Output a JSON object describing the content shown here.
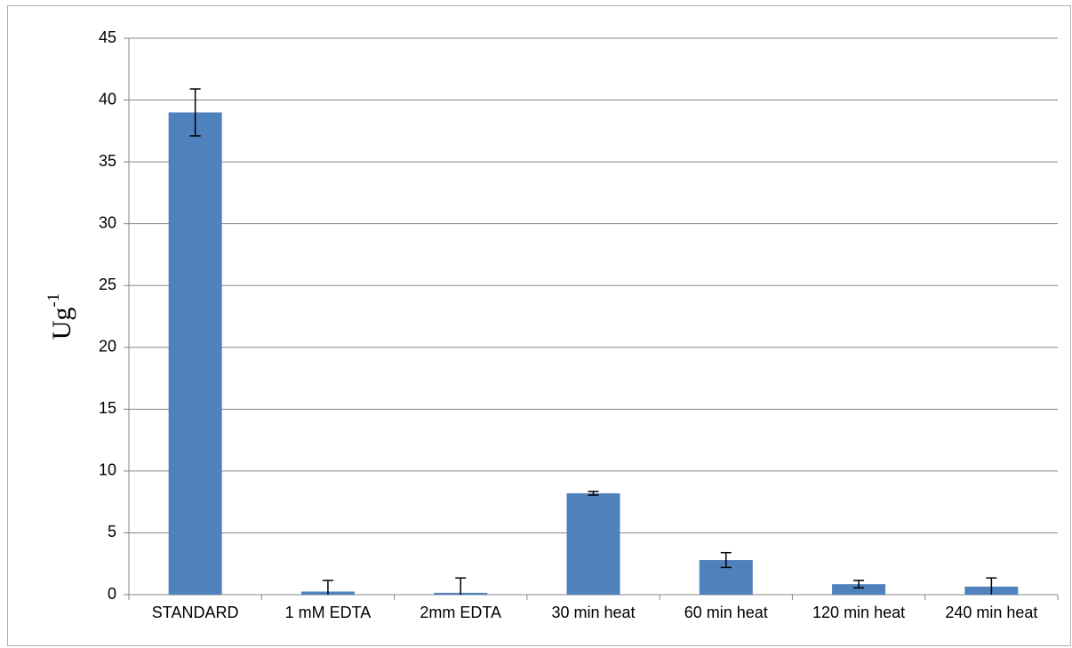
{
  "chart_data": {
    "type": "bar",
    "ylabel": {
      "text": "Ug",
      "superscript": "-1"
    },
    "categories": [
      "STANDARD",
      "1 mM EDTA",
      "2mm EDTA",
      "30 min heat",
      "60 min heat",
      "120 min heat",
      "240 min heat"
    ],
    "values": [
      39,
      0.25,
      0.15,
      8.2,
      2.8,
      0.85,
      0.65
    ],
    "errors": [
      1.9,
      0.9,
      1.2,
      0.15,
      0.6,
      0.3,
      0.7
    ],
    "color": "#4f81bd",
    "ylim": [
      0,
      45
    ],
    "yticks": [
      0,
      5,
      10,
      15,
      20,
      25,
      30,
      35,
      40,
      45
    ],
    "grid": true
  }
}
